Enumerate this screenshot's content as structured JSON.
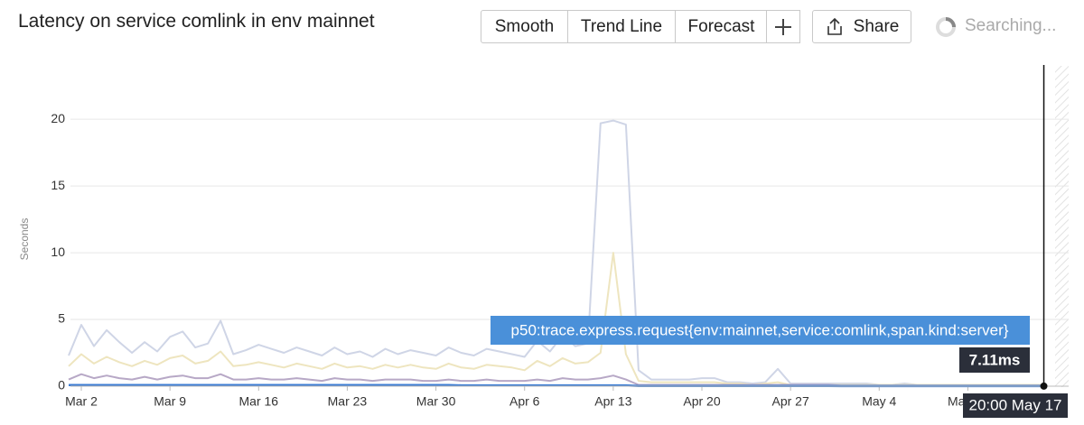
{
  "toolbar": {
    "buttons": [
      "Smooth",
      "Trend Line",
      "Forecast"
    ],
    "share": "Share",
    "status": "Searching..."
  },
  "chart_data": {
    "type": "line",
    "title": "Latency on service comlink in env mainnet",
    "y_label": "Seconds",
    "categories": [
      null,
      "Mar 2",
      null,
      null,
      null,
      null,
      null,
      null,
      "Mar 9",
      null,
      null,
      null,
      null,
      null,
      null,
      "Mar 16",
      null,
      null,
      null,
      null,
      null,
      null,
      "Mar 23",
      null,
      null,
      null,
      null,
      null,
      null,
      "Mar 30",
      null,
      null,
      null,
      null,
      null,
      null,
      "Apr 6",
      null,
      null,
      null,
      null,
      null,
      null,
      "Apr 13",
      null,
      null,
      null,
      null,
      null,
      null,
      "Apr 20",
      null,
      null,
      null,
      null,
      null,
      null,
      "Apr 27",
      null,
      null,
      null,
      null,
      null,
      null,
      "May 4",
      null,
      null,
      null,
      null,
      null,
      null,
      "May 11",
      null,
      null,
      null,
      null,
      null,
      null
    ],
    "ylim": [
      0,
      24
    ],
    "yticks": [
      0,
      5,
      10,
      15,
      20
    ],
    "grid": true,
    "series": [
      {
        "color": "#cfd5e6",
        "values": [
          2.3,
          4.6,
          3.0,
          4.2,
          3.3,
          2.5,
          3.3,
          2.6,
          3.7,
          4.1,
          2.9,
          3.2,
          4.9,
          2.4,
          2.7,
          3.1,
          2.8,
          2.5,
          2.9,
          2.6,
          2.3,
          2.9,
          2.4,
          2.6,
          2.2,
          2.8,
          2.4,
          2.7,
          2.5,
          2.3,
          2.9,
          2.5,
          2.3,
          2.8,
          2.6,
          2.4,
          2.2,
          3.4,
          2.6,
          3.8,
          3.0,
          3.2,
          19.7,
          19.9,
          19.6,
          1.2,
          0.5,
          0.5,
          0.5,
          0.5,
          0.6,
          0.6,
          0.3,
          0.3,
          0.2,
          0.3,
          1.3,
          0.2,
          0.2,
          0.2,
          0.2,
          0.2,
          0.2,
          0.2,
          0.1,
          0.1,
          0.2,
          0.1,
          0.1,
          0.1,
          0.1,
          0.1,
          0.1,
          0.1,
          0.1,
          0.1,
          0.1,
          0.1
        ]
      },
      {
        "color": "#eee5bf",
        "values": [
          1.5,
          2.4,
          1.7,
          2.2,
          1.8,
          1.5,
          1.9,
          1.6,
          2.1,
          2.3,
          1.7,
          1.9,
          2.6,
          1.5,
          1.6,
          1.8,
          1.6,
          1.4,
          1.7,
          1.5,
          1.3,
          1.7,
          1.4,
          1.5,
          1.3,
          1.6,
          1.4,
          1.6,
          1.4,
          1.3,
          1.7,
          1.4,
          1.3,
          1.6,
          1.5,
          1.4,
          1.2,
          1.9,
          1.5,
          2.1,
          1.7,
          1.8,
          2.5,
          10.0,
          2.4,
          0.4,
          0.3,
          0.3,
          0.3,
          0.3,
          0.3,
          0.3,
          0.2,
          0.2,
          0.1,
          0.2,
          0.3,
          0.1,
          0.1,
          0.1,
          0.1,
          0.1,
          0.1,
          0.1,
          0.1,
          0.1,
          0.1,
          0.1,
          0.1,
          0.1,
          0.1,
          0.1,
          0.1,
          0.1,
          0.1,
          0.1,
          0.1,
          0.1
        ]
      },
      {
        "color": "#b7a8c6",
        "values": [
          0.5,
          0.9,
          0.6,
          0.8,
          0.6,
          0.5,
          0.7,
          0.5,
          0.7,
          0.8,
          0.6,
          0.6,
          0.9,
          0.5,
          0.5,
          0.6,
          0.5,
          0.5,
          0.6,
          0.5,
          0.4,
          0.6,
          0.5,
          0.5,
          0.4,
          0.5,
          0.5,
          0.5,
          0.4,
          0.4,
          0.5,
          0.4,
          0.4,
          0.5,
          0.4,
          0.4,
          0.4,
          0.5,
          0.4,
          0.6,
          0.5,
          0.5,
          0.6,
          0.8,
          0.5,
          0.1,
          0.1,
          0.1,
          0.1,
          0.1,
          0.1,
          0.1,
          0.1,
          0.1,
          0.1,
          0.1,
          0.1,
          0.1,
          0.1,
          0.1,
          0.1,
          0.05,
          0.05,
          0.05,
          0.05,
          0.05,
          0.05,
          0.05,
          0.05,
          0.05,
          0.05,
          0.05,
          0.05,
          0.05,
          0.05,
          0.05,
          0.05,
          0.05
        ]
      },
      {
        "name": "p50:trace.express.request{env:mainnet,service:comlink,span.kind:server}",
        "color": "#3d7dd3",
        "values": [
          0.08,
          0.08,
          0.08,
          0.08,
          0.08,
          0.08,
          0.08,
          0.08,
          0.08,
          0.08,
          0.08,
          0.08,
          0.08,
          0.08,
          0.08,
          0.08,
          0.08,
          0.08,
          0.08,
          0.08,
          0.08,
          0.08,
          0.08,
          0.08,
          0.08,
          0.08,
          0.08,
          0.08,
          0.08,
          0.08,
          0.08,
          0.06,
          0.06,
          0.06,
          0.06,
          0.06,
          0.06,
          0.06,
          0.06,
          0.06,
          0.06,
          0.06,
          0.06,
          0.06,
          0.06,
          0.02,
          0.02,
          0.02,
          0.02,
          0.02,
          0.02,
          0.02,
          0.02,
          0.02,
          0.02,
          0.02,
          0.02,
          0.02,
          0.02,
          0.02,
          0.02,
          0.01,
          0.01,
          0.01,
          0.01,
          0.01,
          0.01,
          0.01,
          0.01,
          0.01,
          0.01,
          0.01,
          0.01,
          0.01,
          0.01,
          0.01,
          0.01,
          0.00711
        ]
      }
    ],
    "hover": {
      "x_label": "20:00 May 17",
      "value_label": "7.11ms"
    }
  }
}
